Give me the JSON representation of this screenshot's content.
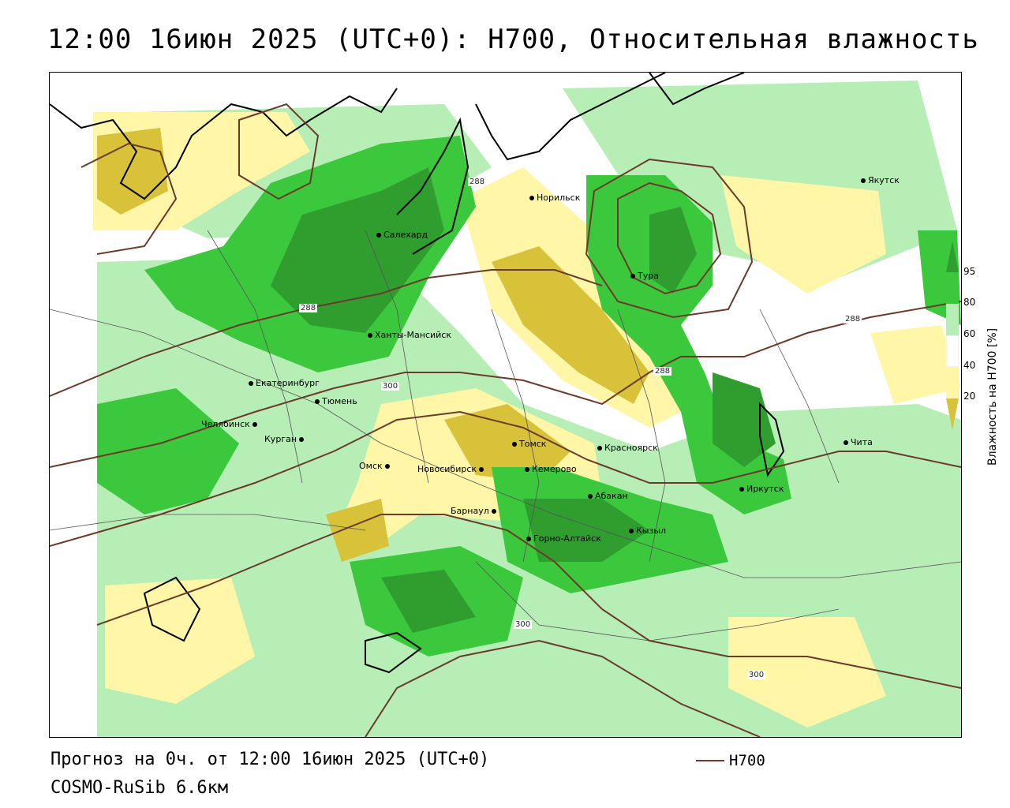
{
  "header": {
    "title": "12:00 16июн 2025 (UTC+0): H700, Относительная влажность"
  },
  "footer": {
    "forecast": "Прогноз на 0ч. от 12:00 16июн 2025 (UTC+0)",
    "model": "COSMO-RuSib 6.6км",
    "legend_label": "H700"
  },
  "colorbar": {
    "title": "Влажность на H700 [%]",
    "ticks": [
      "95",
      "80",
      "60",
      "40",
      "20"
    ],
    "colors": [
      "#2f9e2f",
      "#3cc83c",
      "#b6eeb6",
      "#ffffff",
      "#fff6a8",
      "#d8c23a"
    ]
  },
  "cities": [
    {
      "name": "Норильск"
    },
    {
      "name": "Якутск"
    },
    {
      "name": "Салехард"
    },
    {
      "name": "Тура"
    },
    {
      "name": "Ханты-Мансийск"
    },
    {
      "name": "Екатеринбург"
    },
    {
      "name": "Тюмень"
    },
    {
      "name": "Челябинск"
    },
    {
      "name": "Курган"
    },
    {
      "name": "Омск"
    },
    {
      "name": "Новосибирск"
    },
    {
      "name": "Томск"
    },
    {
      "name": "Кемерово"
    },
    {
      "name": "Красноярск"
    },
    {
      "name": "Барнаул"
    },
    {
      "name": "Абакан"
    },
    {
      "name": "Горно-Алтайск"
    },
    {
      "name": "Кызыл"
    },
    {
      "name": "Иркутск"
    },
    {
      "name": "Чита"
    }
  ],
  "isolines": [
    {
      "label": "288"
    },
    {
      "label": "288"
    },
    {
      "label": "288"
    },
    {
      "label": "288"
    },
    {
      "label": "300"
    },
    {
      "label": "300"
    },
    {
      "label": "300"
    }
  ],
  "colors": {
    "isoline": "#6b3a2a",
    "green_dark": "#2f9e2f",
    "green_mid": "#3cc83c",
    "green_light": "#b6eeb6",
    "yellow_light": "#fff6a8",
    "yellow_dark": "#d8c23a"
  }
}
